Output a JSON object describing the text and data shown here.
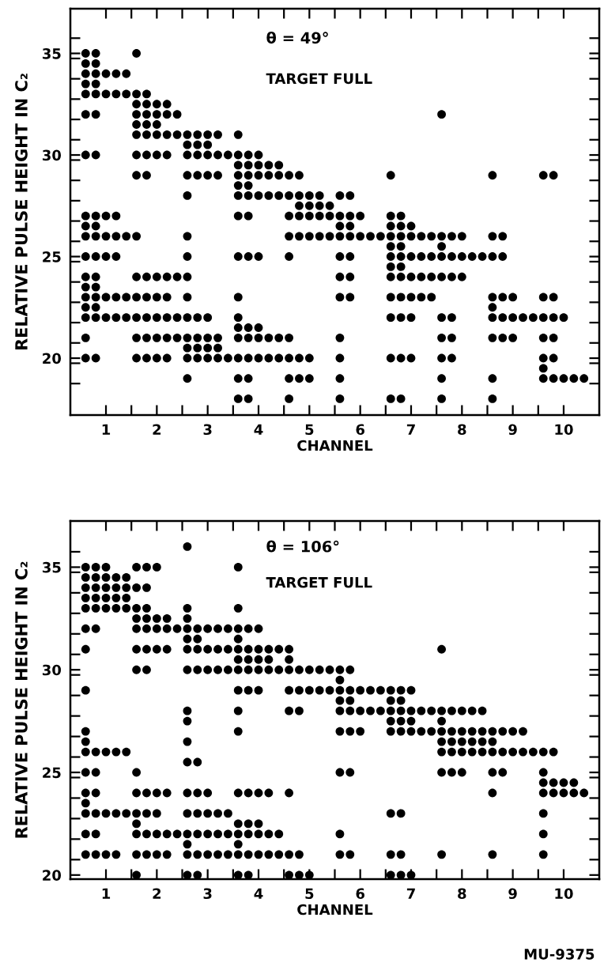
{
  "chart_data": [
    {
      "type": "scatter",
      "xlabel": "CHANNEL",
      "ylabel": "RELATIVE PULSE HEIGHT IN C₂",
      "annotations": [
        "θ = 49°",
        "TARGET FULL"
      ],
      "xlim": [
        0.3,
        10.7
      ],
      "ylim": [
        17.2,
        37.2
      ],
      "xticks": [
        {
          "value": 1,
          "label": "1"
        },
        {
          "value": 2,
          "label": "2"
        },
        {
          "value": 3,
          "label": "3"
        },
        {
          "value": 4,
          "label": "4"
        },
        {
          "value": 5,
          "label": "5"
        },
        {
          "value": 6,
          "label": "6"
        },
        {
          "value": 7,
          "label": "7"
        },
        {
          "value": 8,
          "label": "8"
        },
        {
          "value": 9,
          "label": "9"
        },
        {
          "value": 10,
          "label": "10"
        },
        {
          "value": 1.5,
          "label": null
        },
        {
          "value": 2.5,
          "label": null
        },
        {
          "value": 3.5,
          "label": null
        },
        {
          "value": 4.5,
          "label": null
        },
        {
          "value": 5.5,
          "label": null
        },
        {
          "value": 6.5,
          "label": null
        },
        {
          "value": 7.5,
          "label": null
        },
        {
          "value": 8.5,
          "label": null
        },
        {
          "value": 9.5,
          "label": null
        }
      ],
      "yticks": [
        20,
        25,
        30,
        35,
        {
          "value": 18.75,
          "label": null
        },
        {
          "value": 19.75,
          "label": null
        },
        {
          "value": 20.75,
          "label": null
        },
        {
          "value": 21.75,
          "label": null
        },
        {
          "value": 22.75,
          "label": null
        },
        {
          "value": 23.75,
          "label": null
        },
        {
          "value": 24.75,
          "label": null
        },
        {
          "value": 25.75,
          "label": null
        },
        {
          "value": 26.75,
          "label": null
        },
        {
          "value": 27.75,
          "label": null
        },
        {
          "value": 28.75,
          "label": null
        },
        {
          "value": 29.75,
          "label": null
        },
        {
          "value": 30.75,
          "label": null
        },
        {
          "value": 31.75,
          "label": null
        },
        {
          "value": 32.75,
          "label": null
        },
        {
          "value": 33.75,
          "label": null
        },
        {
          "value": 34.75,
          "label": null
        },
        {
          "value": 35.75,
          "label": null
        }
      ],
      "grid": false,
      "legend": false,
      "marker": "circle",
      "series": [
        {
          "color": "#000000",
          "x": [
            0.6,
            0.8,
            1.6,
            0.6,
            0.8,
            0.6,
            0.8,
            1,
            1.2,
            1.4,
            0.6,
            0.8,
            0.6,
            0.8,
            1,
            1.2,
            1.4,
            1.6,
            1.8,
            1.6,
            1.8,
            2,
            2.2,
            0.6,
            0.8,
            1.6,
            1.8,
            2,
            2.2,
            2.4,
            7.6,
            1.6,
            1.8,
            2,
            1.6,
            1.8,
            2,
            2.2,
            2.4,
            2.6,
            2.8,
            3,
            3.2,
            3.6,
            2.6,
            2.8,
            3,
            0.6,
            0.8,
            1.6,
            1.8,
            2,
            2.2,
            2.6,
            2.8,
            3,
            3.2,
            3.4,
            3.6,
            3.8,
            4,
            3.6,
            3.8,
            4,
            4.2,
            4.4,
            1.6,
            1.8,
            2.6,
            2.8,
            3,
            3.2,
            3.6,
            3.8,
            4,
            4.2,
            4.4,
            4.6,
            4.8,
            6.6,
            8.6,
            9.6,
            9.8,
            3.6,
            3.8,
            2.6,
            3.6,
            3.8,
            4,
            4.2,
            4.4,
            4.6,
            4.8,
            5,
            5.2,
            5.6,
            5.8,
            4.8,
            5,
            5.2,
            5.4,
            0.6,
            0.8,
            1,
            1.2,
            3.6,
            3.8,
            4.6,
            4.8,
            5,
            5.2,
            5.4,
            5.6,
            5.8,
            6,
            6.6,
            6.8,
            0.6,
            0.8,
            5.6,
            5.8,
            6.6,
            6.8,
            7,
            0.6,
            0.8,
            1,
            1.2,
            1.4,
            1.6,
            2.6,
            4.6,
            4.8,
            5,
            5.2,
            5.4,
            5.6,
            5.8,
            6,
            6.2,
            6.4,
            6.6,
            6.8,
            7,
            7.2,
            7.4,
            7.6,
            7.8,
            8,
            8.6,
            8.8,
            6.6,
            6.8,
            7.6,
            0.6,
            0.8,
            1,
            1.2,
            2.6,
            3.6,
            3.8,
            4,
            4.6,
            5.6,
            5.8,
            6.6,
            6.8,
            7,
            7.2,
            7.4,
            7.6,
            7.8,
            8,
            8.2,
            8.4,
            8.6,
            8.8,
            6.6,
            6.8,
            0.6,
            0.8,
            1.6,
            1.8,
            2,
            2.2,
            2.4,
            2.6,
            5.6,
            5.8,
            6.6,
            6.8,
            7,
            7.2,
            7.4,
            7.6,
            7.8,
            8,
            0.6,
            0.8,
            0.6,
            0.8,
            1,
            1.2,
            1.4,
            1.6,
            1.8,
            2,
            2.2,
            2.6,
            3.6,
            5.6,
            5.8,
            6.6,
            6.8,
            7,
            7.2,
            7.4,
            8.6,
            8.8,
            9,
            9.6,
            9.8,
            0.6,
            0.8,
            8.6,
            0.6,
            0.8,
            1,
            1.2,
            1.4,
            1.6,
            1.8,
            2,
            2.2,
            2.4,
            2.6,
            2.8,
            3,
            3.6,
            6.6,
            6.8,
            7,
            7.6,
            7.8,
            8.6,
            8.8,
            9,
            9.2,
            9.4,
            9.6,
            9.8,
            10,
            3.6,
            3.8,
            4,
            0.6,
            1.6,
            1.8,
            2,
            2.2,
            2.4,
            2.6,
            2.8,
            3,
            3.2,
            3.6,
            3.8,
            4,
            4.2,
            4.4,
            4.6,
            5.6,
            7.6,
            7.8,
            8.6,
            8.8,
            9,
            9.6,
            9.8,
            2.6,
            2.8,
            3,
            3.2,
            0.6,
            0.8,
            1.6,
            1.8,
            2,
            2.2,
            2.6,
            2.8,
            3,
            3.2,
            3.4,
            3.6,
            3.8,
            4,
            4.2,
            4.4,
            4.6,
            4.8,
            5,
            5.6,
            6.6,
            6.8,
            7,
            7.6,
            7.8,
            9.6,
            9.8,
            9.6,
            2.6,
            3.6,
            3.8,
            4.6,
            4.8,
            5,
            5.6,
            7.6,
            8.6,
            9.6,
            9.8,
            10,
            10.2,
            10.4,
            3.6,
            3.8,
            4.6,
            5.6,
            6.6,
            6.8,
            7.6,
            8.6
          ],
          "values": [
            35,
            35,
            35,
            34.5,
            34.5,
            34,
            34,
            34,
            34,
            34,
            33.5,
            33.5,
            33,
            33,
            33,
            33,
            33,
            33,
            33,
            32.5,
            32.5,
            32.5,
            32.5,
            32,
            32,
            32,
            32,
            32,
            32,
            32,
            32,
            31.5,
            31.5,
            31.5,
            31,
            31,
            31,
            31,
            31,
            31,
            31,
            31,
            31,
            31,
            30.5,
            30.5,
            30.5,
            30,
            30,
            30,
            30,
            30,
            30,
            30,
            30,
            30,
            30,
            30,
            30,
            30,
            30,
            29.5,
            29.5,
            29.5,
            29.5,
            29.5,
            29,
            29,
            29,
            29,
            29,
            29,
            29,
            29,
            29,
            29,
            29,
            29,
            29,
            29,
            29,
            29,
            29,
            28.5,
            28.5,
            28,
            28,
            28,
            28,
            28,
            28,
            28,
            28,
            28,
            28,
            28,
            28,
            27.5,
            27.5,
            27.5,
            27.5,
            27,
            27,
            27,
            27,
            27,
            27,
            27,
            27,
            27,
            27,
            27,
            27,
            27,
            27,
            27,
            27,
            26.5,
            26.5,
            26.5,
            26.5,
            26.5,
            26.5,
            26.5,
            26,
            26,
            26,
            26,
            26,
            26,
            26,
            26,
            26,
            26,
            26,
            26,
            26,
            26,
            26,
            26,
            26,
            26,
            26,
            26,
            26,
            26,
            26,
            26,
            26,
            26,
            26,
            25.5,
            25.5,
            25.5,
            25,
            25,
            25,
            25,
            25,
            25,
            25,
            25,
            25,
            25,
            25,
            25,
            25,
            25,
            25,
            25,
            25,
            25,
            25,
            25,
            25,
            25,
            25,
            24.5,
            24.5,
            24,
            24,
            24,
            24,
            24,
            24,
            24,
            24,
            24,
            24,
            24,
            24,
            24,
            24,
            24,
            24,
            24,
            24,
            23.5,
            23.5,
            23,
            23,
            23,
            23,
            23,
            23,
            23,
            23,
            23,
            23,
            23,
            23,
            23,
            23,
            23,
            23,
            23,
            23,
            23,
            23,
            23,
            23,
            23,
            22.5,
            22.5,
            22.5,
            22,
            22,
            22,
            22,
            22,
            22,
            22,
            22,
            22,
            22,
            22,
            22,
            22,
            22,
            22,
            22,
            22,
            22,
            22,
            22,
            22,
            22,
            22,
            22,
            22,
            22,
            22,
            21.5,
            21.5,
            21.5,
            21,
            21,
            21,
            21,
            21,
            21,
            21,
            21,
            21,
            21,
            21,
            21,
            21,
            21,
            21,
            21,
            21,
            21,
            21,
            21,
            21,
            21,
            21,
            21,
            20.5,
            20.5,
            20.5,
            20.5,
            20,
            20,
            20,
            20,
            20,
            20,
            20,
            20,
            20,
            20,
            20,
            20,
            20,
            20,
            20,
            20,
            20,
            20,
            20,
            20,
            20,
            20,
            20,
            20,
            20,
            20,
            20,
            19.5,
            19,
            19,
            19,
            19,
            19,
            19,
            19,
            19,
            19,
            19,
            19,
            19,
            19,
            19,
            18,
            18,
            18,
            18,
            18,
            18,
            18,
            18
          ]
        }
      ]
    },
    {
      "type": "scatter",
      "xlabel": "CHANNEL",
      "ylabel": "RELATIVE PULSE HEIGHT IN C₂",
      "annotations": [
        "θ = 106°",
        "TARGET FULL",
        "MU-9375"
      ],
      "xlim": [
        0.3,
        10.7
      ],
      "ylim": [
        19.8,
        37.25
      ],
      "xticks": [
        {
          "value": 1,
          "label": "1"
        },
        {
          "value": 2,
          "label": "2"
        },
        {
          "value": 3,
          "label": "3"
        },
        {
          "value": 4,
          "label": "4"
        },
        {
          "value": 5,
          "label": "5"
        },
        {
          "value": 6,
          "label": "6"
        },
        {
          "value": 7,
          "label": "7"
        },
        {
          "value": 8,
          "label": "8"
        },
        {
          "value": 9,
          "label": "9"
        },
        {
          "value": 10,
          "label": "10"
        },
        {
          "value": 1.5,
          "label": null
        },
        {
          "value": 2.5,
          "label": null
        },
        {
          "value": 3.5,
          "label": null
        },
        {
          "value": 4.5,
          "label": null
        },
        {
          "value": 5.5,
          "label": null
        },
        {
          "value": 6.5,
          "label": null
        },
        {
          "value": 7.5,
          "label": null
        },
        {
          "value": 8.5,
          "label": null
        },
        {
          "value": 9.5,
          "label": null
        }
      ],
      "yticks": [
        20,
        25,
        30,
        35,
        {
          "value": 20.75,
          "label": null
        },
        {
          "value": 21.75,
          "label": null
        },
        {
          "value": 22.75,
          "label": null
        },
        {
          "value": 23.75,
          "label": null
        },
        {
          "value": 24.75,
          "label": null
        },
        {
          "value": 25.75,
          "label": null
        },
        {
          "value": 26.75,
          "label": null
        },
        {
          "value": 27.75,
          "label": null
        },
        {
          "value": 28.75,
          "label": null
        },
        {
          "value": 29.75,
          "label": null
        },
        {
          "value": 30.75,
          "label": null
        },
        {
          "value": 31.75,
          "label": null
        },
        {
          "value": 32.75,
          "label": null
        },
        {
          "value": 33.75,
          "label": null
        },
        {
          "value": 34.75,
          "label": null
        },
        {
          "value": 35.75,
          "label": null
        }
      ],
      "grid": false,
      "legend": false,
      "marker": "circle",
      "series": [
        {
          "color": "#000000",
          "x": [
            2.6,
            0.6,
            0.8,
            1,
            1.6,
            1.8,
            2,
            3.6,
            0.6,
            0.8,
            1,
            1.2,
            1.4,
            0.6,
            0.8,
            1,
            1.2,
            1.4,
            1.6,
            1.8,
            0.6,
            0.8,
            1,
            1.2,
            1.4,
            0.6,
            0.8,
            1,
            1.2,
            1.4,
            1.6,
            1.8,
            2.6,
            3.6,
            1.6,
            1.8,
            2,
            2.2,
            2.6,
            0.6,
            0.8,
            1.6,
            1.8,
            2,
            2.2,
            2.4,
            2.6,
            2.8,
            3,
            3.2,
            3.4,
            3.6,
            3.8,
            4,
            2.6,
            2.8,
            3.6,
            0.6,
            1.6,
            1.8,
            2,
            2.2,
            2.6,
            2.8,
            3,
            3.2,
            3.4,
            3.6,
            3.8,
            4,
            4.2,
            4.4,
            4.6,
            7.6,
            3.6,
            3.8,
            4,
            4.2,
            4.6,
            1.6,
            1.8,
            2.6,
            2.8,
            3,
            3.2,
            3.4,
            3.6,
            3.8,
            4,
            4.2,
            4.4,
            4.6,
            4.8,
            5,
            5.2,
            5.4,
            5.6,
            5.8,
            5.6,
            0.6,
            3.6,
            3.8,
            4,
            4.6,
            4.8,
            5,
            5.2,
            5.4,
            5.6,
            5.8,
            6,
            6.2,
            6.4,
            6.6,
            6.8,
            7,
            5.6,
            5.8,
            6.6,
            6.8,
            2.6,
            3.6,
            4.6,
            4.8,
            5.6,
            5.8,
            6,
            6.2,
            6.4,
            6.6,
            6.8,
            7,
            7.2,
            7.4,
            7.6,
            7.8,
            8,
            8.2,
            8.4,
            2.6,
            6.6,
            6.8,
            7,
            7.6,
            0.6,
            3.6,
            5.6,
            5.8,
            6,
            6.6,
            6.8,
            7,
            7.2,
            7.4,
            7.6,
            7.8,
            8,
            8.2,
            8.4,
            8.6,
            8.8,
            9,
            9.2,
            0.6,
            2.6,
            7.6,
            7.8,
            8,
            8.2,
            8.4,
            8.6,
            0.6,
            0.8,
            1,
            1.2,
            1.4,
            7.6,
            7.8,
            8,
            8.2,
            8.4,
            8.6,
            8.8,
            9,
            9.2,
            9.4,
            9.6,
            9.8,
            2.6,
            2.8,
            0.6,
            0.8,
            1.6,
            5.6,
            5.8,
            7.6,
            7.8,
            8,
            8.6,
            8.8,
            9.6,
            9.6,
            9.8,
            10,
            10.2,
            0.6,
            0.8,
            1.6,
            1.8,
            2,
            2.2,
            2.6,
            2.8,
            3,
            3.6,
            3.8,
            4,
            4.2,
            4.6,
            8.6,
            9.6,
            9.8,
            10,
            10.2,
            10.4,
            0.6,
            0.6,
            0.8,
            1,
            1.2,
            1.4,
            1.6,
            1.8,
            2,
            2.6,
            2.8,
            3,
            3.2,
            3.4,
            6.6,
            6.8,
            9.6,
            1.6,
            3.6,
            3.8,
            4,
            0.6,
            0.8,
            1.6,
            1.8,
            2,
            2.2,
            2.4,
            2.6,
            2.8,
            3,
            3.2,
            3.4,
            3.6,
            3.8,
            4,
            4.2,
            4.4,
            5.6,
            9.6,
            2.6,
            3.6,
            0.6,
            0.8,
            1,
            1.2,
            1.6,
            1.8,
            2,
            2.2,
            2.6,
            2.8,
            3,
            3.2,
            3.4,
            3.6,
            3.8,
            4,
            4.2,
            4.4,
            4.6,
            4.8,
            5.6,
            5.8,
            6.6,
            6.8,
            7.6,
            8.6,
            9.6,
            1.6,
            2.6,
            2.8,
            3.6,
            3.8,
            4.6,
            4.8,
            5,
            6.6,
            6.8,
            7
          ],
          "values": [
            36,
            35,
            35,
            35,
            35,
            35,
            35,
            35,
            34.5,
            34.5,
            34.5,
            34.5,
            34.5,
            34,
            34,
            34,
            34,
            34,
            34,
            34,
            33.5,
            33.5,
            33.5,
            33.5,
            33.5,
            33,
            33,
            33,
            33,
            33,
            33,
            33,
            33,
            33,
            32.5,
            32.5,
            32.5,
            32.5,
            32.5,
            32,
            32,
            32,
            32,
            32,
            32,
            32,
            32,
            32,
            32,
            32,
            32,
            32,
            32,
            32,
            31.5,
            31.5,
            31.5,
            31,
            31,
            31,
            31,
            31,
            31,
            31,
            31,
            31,
            31,
            31,
            31,
            31,
            31,
            31,
            31,
            31,
            30.5,
            30.5,
            30.5,
            30.5,
            30.5,
            30,
            30,
            30,
            30,
            30,
            30,
            30,
            30,
            30,
            30,
            30,
            30,
            30,
            30,
            30,
            30,
            30,
            30,
            30,
            29.5,
            29,
            29,
            29,
            29,
            29,
            29,
            29,
            29,
            29,
            29,
            29,
            29,
            29,
            29,
            29,
            29,
            29,
            28.5,
            28.5,
            28.5,
            28.5,
            28,
            28,
            28,
            28,
            28,
            28,
            28,
            28,
            28,
            28,
            28,
            28,
            28,
            28,
            28,
            28,
            28,
            28,
            28,
            27.5,
            27.5,
            27.5,
            27.5,
            27.5,
            27,
            27,
            27,
            27,
            27,
            27,
            27,
            27,
            27,
            27,
            27,
            27,
            27,
            27,
            27,
            27,
            27,
            27,
            27,
            26.5,
            26.5,
            26.5,
            26.5,
            26.5,
            26.5,
            26.5,
            26.5,
            26,
            26,
            26,
            26,
            26,
            26,
            26,
            26,
            26,
            26,
            26,
            26,
            26,
            26,
            26,
            26,
            26,
            25.5,
            25.5,
            25,
            25,
            25,
            25,
            25,
            25,
            25,
            25,
            25,
            25,
            25,
            24.5,
            24.5,
            24.5,
            24.5,
            24,
            24,
            24,
            24,
            24,
            24,
            24,
            24,
            24,
            24,
            24,
            24,
            24,
            24,
            24,
            24,
            24,
            24,
            24,
            24,
            23.5,
            23,
            23,
            23,
            23,
            23,
            23,
            23,
            23,
            23,
            23,
            23,
            23,
            23,
            23,
            23,
            23,
            22.5,
            22.5,
            22.5,
            22.5,
            22,
            22,
            22,
            22,
            22,
            22,
            22,
            22,
            22,
            22,
            22,
            22,
            22,
            22,
            22,
            22,
            22,
            22,
            22,
            21.5,
            21.5,
            21,
            21,
            21,
            21,
            21,
            21,
            21,
            21,
            21,
            21,
            21,
            21,
            21,
            21,
            21,
            21,
            21,
            21,
            21,
            21,
            21,
            21,
            21,
            21,
            21,
            21,
            21,
            20,
            20,
            20,
            20,
            20,
            20,
            20,
            20,
            20,
            20,
            20
          ]
        }
      ]
    }
  ]
}
